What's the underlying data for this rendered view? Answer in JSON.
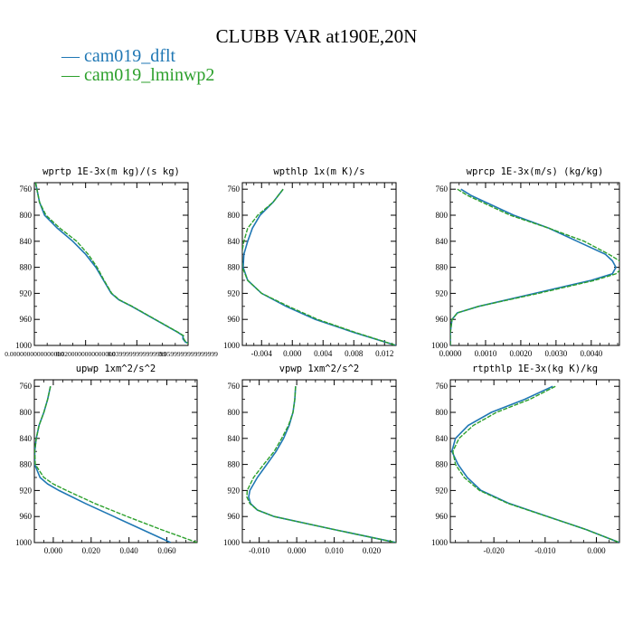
{
  "title": "CLUBB VAR at190E,20N",
  "colors": {
    "dflt": "#1f77b4",
    "lminwp2": "#2ca02c"
  },
  "legend": [
    {
      "label": "cam019_dflt",
      "color": "#1f77b4"
    },
    {
      "label": "cam019_lminwp2",
      "color": "#2ca02c"
    }
  ],
  "chart_data": [
    {
      "type": "line",
      "title": "wprtp  1E-3x(m kg)/(s kg)",
      "xlim": [
        0.0,
        0.06
      ],
      "ylim": [
        750,
        1000
      ],
      "y_inverted": true,
      "xticks": [
        "0.0000000000000000",
        "0.0200000000000000",
        "0.0399999999999999",
        "0.0599999999999999"
      ],
      "xtick_values": [
        0.0,
        0.02,
        0.04,
        0.06
      ],
      "yticks": [
        760,
        800,
        840,
        880,
        920,
        960,
        1000
      ],
      "series": [
        {
          "name": "cam019_dflt",
          "y": [
            750,
            760,
            780,
            800,
            820,
            840,
            860,
            880,
            900,
            920,
            930,
            940,
            960,
            980,
            985,
            990,
            995,
            1000
          ],
          "x": [
            0.0005,
            0.001,
            0.002,
            0.004,
            0.009,
            0.015,
            0.02,
            0.024,
            0.027,
            0.03,
            0.033,
            0.038,
            0.047,
            0.056,
            0.058,
            0.058,
            0.059,
            0.063
          ]
        },
        {
          "name": "cam019_lminwp2",
          "y": [
            750,
            760,
            780,
            800,
            820,
            840,
            860,
            880,
            900,
            920,
            930,
            940,
            960,
            980,
            985,
            990,
            995,
            1000
          ],
          "x": [
            0.0005,
            0.001,
            0.002,
            0.0045,
            0.01,
            0.0165,
            0.021,
            0.0245,
            0.0272,
            0.0302,
            0.0332,
            0.0382,
            0.0472,
            0.0562,
            0.0582,
            0.0583,
            0.0592,
            0.0615
          ]
        }
      ]
    },
    {
      "type": "line",
      "title": "wpthlp  1x(m K)/s",
      "xlim": [
        -0.0065,
        0.0135
      ],
      "ylim": [
        750,
        1000
      ],
      "y_inverted": true,
      "xticks": [
        "-0.004",
        "0.000",
        "0.004",
        "0.008",
        "0.012"
      ],
      "xtick_values": [
        -0.004,
        0.0,
        0.004,
        0.008,
        0.012
      ],
      "yticks": [
        760,
        800,
        840,
        880,
        920,
        960,
        1000
      ],
      "series": [
        {
          "name": "cam019_dflt",
          "y": [
            760,
            780,
            800,
            820,
            840,
            860,
            880,
            900,
            920,
            940,
            960,
            980,
            1000
          ],
          "x": [
            -0.0012,
            -0.0025,
            -0.0042,
            -0.0052,
            -0.0058,
            -0.0063,
            -0.0064,
            -0.0058,
            -0.004,
            -0.0008,
            0.003,
            0.008,
            0.0135
          ]
        },
        {
          "name": "cam019_lminwp2",
          "y": [
            760,
            780,
            800,
            820,
            840,
            860,
            880,
            900,
            920,
            940,
            960,
            980,
            1000
          ],
          "x": [
            -0.0012,
            -0.0025,
            -0.0045,
            -0.0058,
            -0.0063,
            -0.0066,
            -0.0065,
            -0.0058,
            -0.004,
            -0.0005,
            0.0033,
            0.0082,
            0.0135
          ]
        }
      ]
    },
    {
      "type": "line",
      "title": "wprcp  1E-3x(m/s) (kg/kg)",
      "xlim": [
        0.0,
        0.0048
      ],
      "ylim": [
        750,
        1000
      ],
      "y_inverted": true,
      "xticks": [
        "0.0000",
        "0.0010",
        "0.0020",
        "0.0030",
        "0.0040"
      ],
      "xtick_values": [
        0.0,
        0.001,
        0.002,
        0.003,
        0.004
      ],
      "yticks": [
        760,
        800,
        840,
        880,
        920,
        960,
        1000
      ],
      "series": [
        {
          "name": "cam019_dflt",
          "y": [
            760,
            770,
            780,
            800,
            820,
            840,
            860,
            870,
            880,
            890,
            900,
            920,
            940,
            950,
            960,
            980,
            1000
          ],
          "x": [
            0.0003,
            0.0006,
            0.001,
            0.0018,
            0.0028,
            0.0036,
            0.0044,
            0.0046,
            0.0047,
            0.0046,
            0.004,
            0.0024,
            0.0008,
            0.0002,
            5e-05,
            0.0,
            0.0
          ]
        },
        {
          "name": "cam019_lminwp2",
          "y": [
            760,
            770,
            780,
            800,
            820,
            840,
            860,
            870,
            880,
            890,
            900,
            920,
            940,
            950,
            960,
            980,
            1000
          ],
          "x": [
            0.0002,
            0.0005,
            0.0009,
            0.0017,
            0.0028,
            0.0038,
            0.0045,
            0.0048,
            0.0049,
            0.0047,
            0.0041,
            0.0025,
            0.0008,
            0.0002,
            5e-05,
            0.0,
            0.0
          ]
        }
      ]
    },
    {
      "type": "line",
      "title": "upwp  1xm^2/s^2",
      "xlim": [
        -0.01,
        0.076
      ],
      "ylim": [
        750,
        1000
      ],
      "y_inverted": true,
      "xticks": [
        "0.000",
        "0.020",
        "0.040",
        "0.060"
      ],
      "xtick_values": [
        0.0,
        0.02,
        0.04,
        0.06
      ],
      "yticks": [
        760,
        800,
        840,
        880,
        920,
        960,
        1000
      ],
      "series": [
        {
          "name": "cam019_dflt",
          "y": [
            760,
            780,
            800,
            820,
            840,
            860,
            880,
            900,
            910,
            920,
            940,
            960,
            980,
            1000
          ],
          "x": [
            -0.0015,
            -0.003,
            -0.005,
            -0.0075,
            -0.009,
            -0.0098,
            -0.0098,
            -0.007,
            -0.003,
            0.003,
            0.017,
            0.032,
            0.047,
            0.062
          ]
        },
        {
          "name": "cam019_lminwp2",
          "y": [
            760,
            780,
            800,
            820,
            840,
            860,
            880,
            900,
            910,
            920,
            940,
            960,
            980,
            1000
          ],
          "x": [
            -0.0015,
            -0.003,
            -0.005,
            -0.0075,
            -0.009,
            -0.0098,
            -0.0095,
            -0.005,
            0.0,
            0.007,
            0.022,
            0.039,
            0.057,
            0.076
          ]
        }
      ]
    },
    {
      "type": "line",
      "title": "vpwp  1xm^2/s^2",
      "xlim": [
        -0.0145,
        0.0265
      ],
      "ylim": [
        750,
        1000
      ],
      "y_inverted": true,
      "xticks": [
        "-0.010",
        "0.000",
        "0.010",
        "0.020"
      ],
      "xtick_values": [
        -0.01,
        0.0,
        0.01,
        0.02
      ],
      "yticks": [
        760,
        800,
        840,
        880,
        920,
        960,
        1000
      ],
      "series": [
        {
          "name": "cam019_dflt",
          "y": [
            760,
            780,
            800,
            820,
            840,
            860,
            880,
            900,
            920,
            930,
            940,
            950,
            960,
            980,
            1000
          ],
          "x": [
            -0.0003,
            -0.0005,
            -0.001,
            -0.002,
            -0.0035,
            -0.0055,
            -0.008,
            -0.0105,
            -0.0125,
            -0.0128,
            -0.0123,
            -0.0105,
            -0.006,
            0.01,
            0.0265
          ]
        },
        {
          "name": "cam019_lminwp2",
          "y": [
            760,
            780,
            800,
            820,
            840,
            860,
            880,
            900,
            920,
            930,
            940,
            950,
            960,
            980,
            1000
          ],
          "x": [
            -0.0003,
            -0.0005,
            -0.001,
            -0.0022,
            -0.004,
            -0.006,
            -0.0088,
            -0.0115,
            -0.0132,
            -0.0133,
            -0.0125,
            -0.0105,
            -0.006,
            0.01,
            0.0265
          ]
        }
      ]
    },
    {
      "type": "line",
      "title": "rtpthlp  1E-3x(kg K)/kg",
      "xlim": [
        -0.0285,
        0.0045
      ],
      "ylim": [
        750,
        1000
      ],
      "y_inverted": true,
      "xticks": [
        "-0.020",
        "-0.010",
        "0.000"
      ],
      "xtick_values": [
        -0.02,
        -0.01,
        0.0
      ],
      "yticks": [
        760,
        800,
        840,
        880,
        920,
        960,
        1000
      ],
      "series": [
        {
          "name": "cam019_dflt",
          "y": [
            760,
            780,
            800,
            820,
            840,
            860,
            880,
            900,
            920,
            940,
            960,
            980,
            1000
          ],
          "x": [
            -0.0085,
            -0.014,
            -0.0205,
            -0.025,
            -0.0275,
            -0.0282,
            -0.027,
            -0.0252,
            -0.0225,
            -0.017,
            -0.0095,
            -0.002,
            0.0045
          ]
        },
        {
          "name": "cam019_lminwp2",
          "y": [
            760,
            780,
            800,
            820,
            840,
            860,
            880,
            900,
            920,
            940,
            960,
            980,
            1000
          ],
          "x": [
            -0.008,
            -0.013,
            -0.0195,
            -0.024,
            -0.0268,
            -0.028,
            -0.0275,
            -0.0258,
            -0.0228,
            -0.0172,
            -0.0096,
            -0.002,
            0.0045
          ]
        }
      ]
    }
  ]
}
